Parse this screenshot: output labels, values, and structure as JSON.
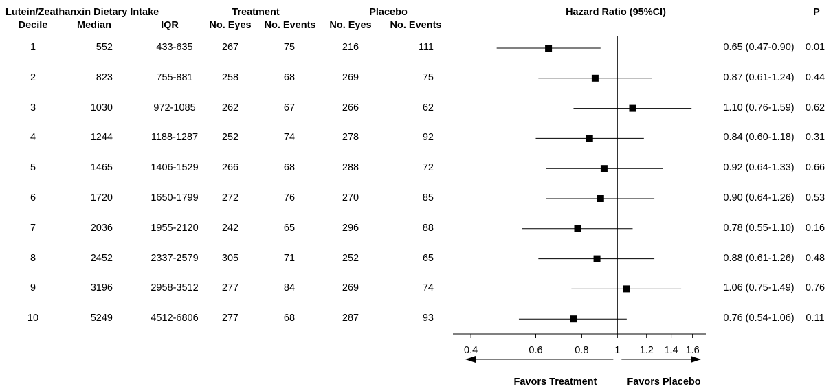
{
  "headers": {
    "top_dietary": "Lutein/Zeathanxin Dietary Intake",
    "top_treatment": "Treatment",
    "top_placebo": "Placebo",
    "hazard": "Hazard Ratio (95%CI)",
    "p": "P",
    "decile": "Decile",
    "median": "Median",
    "iqr": "IQR",
    "t_eyes": "No. Eyes",
    "t_events": "No. Events",
    "p_eyes": "No. Eyes",
    "p_events": "No. Events"
  },
  "footer": {
    "favors_treatment": "Favors Treatment",
    "favors_placebo": "Favors Placebo"
  },
  "chart_data": {
    "type": "forest",
    "x_scale": "log",
    "xlim": [
      0.37,
      1.68
    ],
    "xticks": [
      0.4,
      0.6,
      0.8,
      1,
      1.2,
      1.4,
      1.6
    ],
    "xtick_labels": [
      "0.4",
      "0.6",
      "0.8",
      "1",
      "1.2",
      "1.4",
      "1.6"
    ],
    "reference_line": 1,
    "rows": [
      {
        "decile": "1",
        "median": "552",
        "iqr": "433-635",
        "t_eyes": "267",
        "t_events": "75",
        "p_eyes": "216",
        "p_events": "111",
        "hr": 0.65,
        "lo": 0.47,
        "hi": 0.9,
        "hr_text": "0.65 (0.47-0.90)",
        "p": "0.01"
      },
      {
        "decile": "2",
        "median": "823",
        "iqr": "755-881",
        "t_eyes": "258",
        "t_events": "68",
        "p_eyes": "269",
        "p_events": "75",
        "hr": 0.87,
        "lo": 0.61,
        "hi": 1.24,
        "hr_text": "0.87 (0.61-1.24)",
        "p": "0.44"
      },
      {
        "decile": "3",
        "median": "1030",
        "iqr": "972-1085",
        "t_eyes": "262",
        "t_events": "67",
        "p_eyes": "266",
        "p_events": "62",
        "hr": 1.1,
        "lo": 0.76,
        "hi": 1.59,
        "hr_text": "1.10 (0.76-1.59)",
        "p": "0.62"
      },
      {
        "decile": "4",
        "median": "1244",
        "iqr": "1188-1287",
        "t_eyes": "252",
        "t_events": "74",
        "p_eyes": "278",
        "p_events": "92",
        "hr": 0.84,
        "lo": 0.6,
        "hi": 1.18,
        "hr_text": "0.84 (0.60-1.18)",
        "p": "0.31"
      },
      {
        "decile": "5",
        "median": "1465",
        "iqr": "1406-1529",
        "t_eyes": "266",
        "t_events": "68",
        "p_eyes": "288",
        "p_events": "72",
        "hr": 0.92,
        "lo": 0.64,
        "hi": 1.33,
        "hr_text": "0.92 (0.64-1.33)",
        "p": "0.66"
      },
      {
        "decile": "6",
        "median": "1720",
        "iqr": "1650-1799",
        "t_eyes": "272",
        "t_events": "76",
        "p_eyes": "270",
        "p_events": "85",
        "hr": 0.9,
        "lo": 0.64,
        "hi": 1.26,
        "hr_text": "0.90 (0.64-1.26)",
        "p": "0.53"
      },
      {
        "decile": "7",
        "median": "2036",
        "iqr": "1955-2120",
        "t_eyes": "242",
        "t_events": "65",
        "p_eyes": "296",
        "p_events": "88",
        "hr": 0.78,
        "lo": 0.55,
        "hi": 1.1,
        "hr_text": "0.78 (0.55-1.10)",
        "p": "0.16"
      },
      {
        "decile": "8",
        "median": "2452",
        "iqr": "2337-2579",
        "t_eyes": "305",
        "t_events": "71",
        "p_eyes": "252",
        "p_events": "65",
        "hr": 0.88,
        "lo": 0.61,
        "hi": 1.26,
        "hr_text": "0.88 (0.61-1.26)",
        "p": "0.48"
      },
      {
        "decile": "9",
        "median": "3196",
        "iqr": "2958-3512",
        "t_eyes": "277",
        "t_events": "84",
        "p_eyes": "269",
        "p_events": "74",
        "hr": 1.06,
        "lo": 0.75,
        "hi": 1.49,
        "hr_text": "1.06 (0.75-1.49)",
        "p": "0.76"
      },
      {
        "decile": "10",
        "median": "5249",
        "iqr": "4512-6806",
        "t_eyes": "277",
        "t_events": "68",
        "p_eyes": "287",
        "p_events": "93",
        "hr": 0.76,
        "lo": 0.54,
        "hi": 1.06,
        "hr_text": "0.76 (0.54-1.06)",
        "p": "0.11"
      }
    ]
  }
}
